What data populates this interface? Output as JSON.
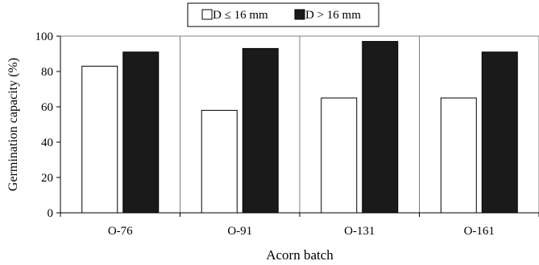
{
  "chart_data": {
    "type": "bar",
    "categories": [
      "O-76",
      "O-91",
      "O-131",
      "O-161"
    ],
    "series": [
      {
        "name": "D ≤ 16 mm",
        "values": [
          83,
          58,
          65,
          65
        ],
        "fill": "#ffffff"
      },
      {
        "name": "D > 16 mm",
        "values": [
          91,
          93,
          97,
          91
        ],
        "fill": "#1a1a1a"
      }
    ],
    "xlabel": "Acorn batch",
    "ylabel": "Germination capacity (%)",
    "ylim": [
      0,
      100
    ],
    "yticks": [
      "0",
      "20",
      "40",
      "60",
      "80",
      "100"
    ],
    "grid": "vertical lines between categories",
    "legend": "top-center"
  }
}
